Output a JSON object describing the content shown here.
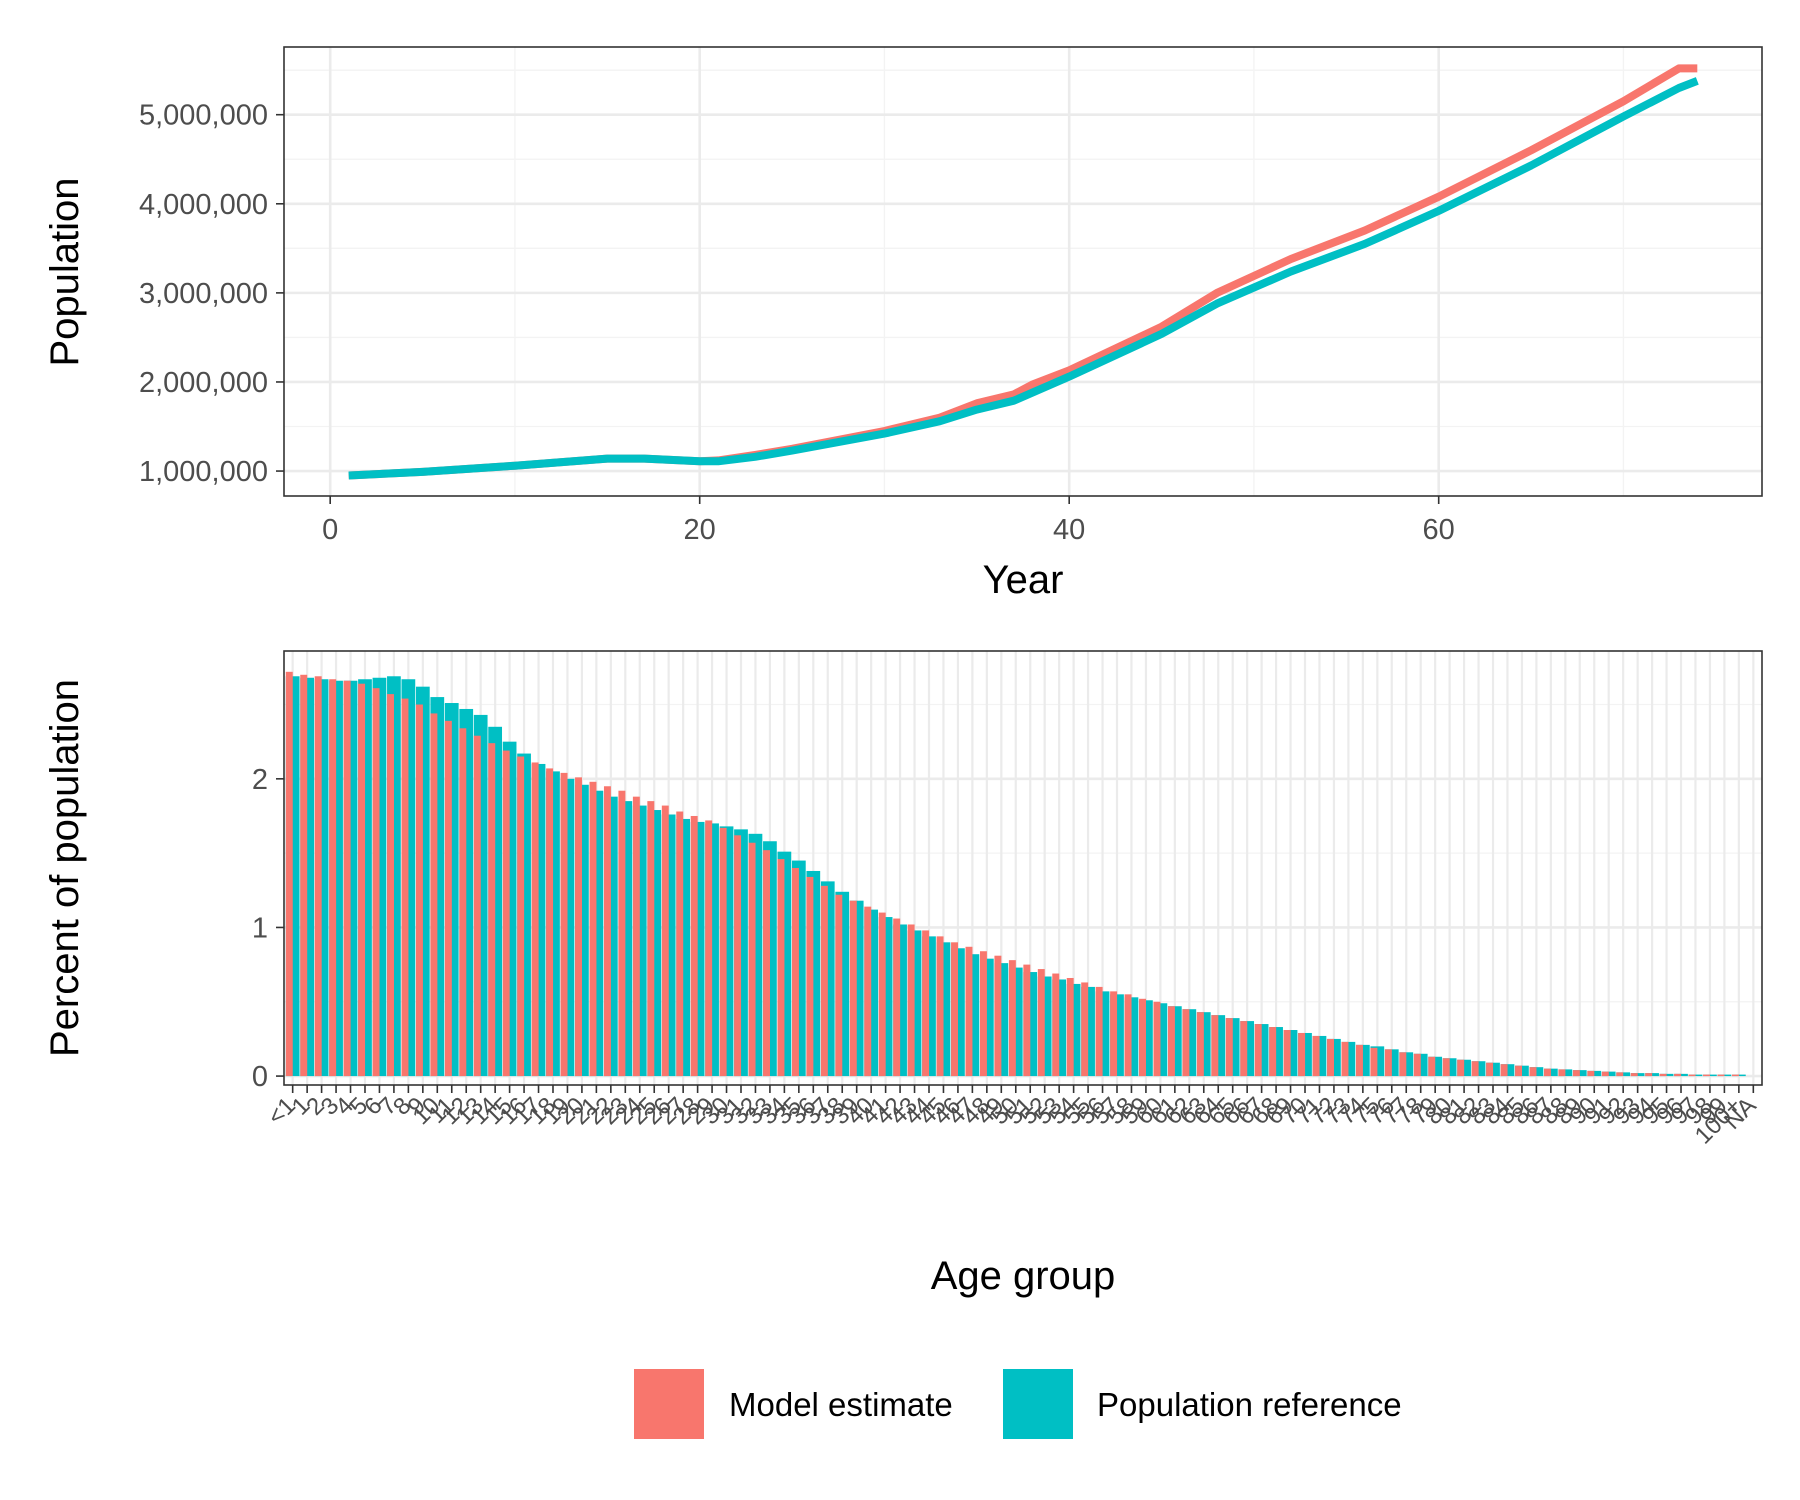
{
  "colors": {
    "model": "#F8766D",
    "reference": "#00BFC4",
    "grid_major": "#EBEBEB",
    "grid_minor": "#F3F3F3",
    "panel_border": "#333333"
  },
  "legend": {
    "items": [
      {
        "label": "Model estimate",
        "color": "#F8766D"
      },
      {
        "label": "Population reference",
        "color": "#00BFC4"
      }
    ],
    "position": "bottom"
  },
  "chart_data": [
    {
      "type": "line",
      "xlabel": "Year",
      "ylabel": "Population",
      "xlim": [
        -2.5,
        77.5
      ],
      "ylim": [
        720000,
        5760000
      ],
      "x_ticks": [
        0,
        20,
        40,
        60
      ],
      "y_ticks": [
        1000000,
        2000000,
        3000000,
        4000000,
        5000000
      ],
      "y_tick_labels": [
        "1,000,000",
        "2,000,000",
        "3,000,000",
        "4,000,000",
        "5,000,000"
      ],
      "grid": true,
      "series": [
        {
          "name": "Model estimate",
          "color": "#F8766D",
          "x": [
            1,
            5,
            10,
            15,
            17,
            20,
            21,
            23,
            25,
            30,
            33,
            35,
            37,
            38,
            40,
            45,
            48,
            52,
            56,
            60,
            65,
            70,
            73,
            74
          ],
          "y": [
            950000,
            990000,
            1060000,
            1140000,
            1140000,
            1110000,
            1120000,
            1180000,
            1250000,
            1450000,
            1600000,
            1760000,
            1860000,
            1970000,
            2130000,
            2620000,
            3000000,
            3380000,
            3700000,
            4080000,
            4600000,
            5150000,
            5520000,
            5520000
          ]
        },
        {
          "name": "Population reference",
          "color": "#00BFC4",
          "x": [
            1,
            5,
            10,
            15,
            17,
            20,
            21,
            23,
            25,
            30,
            33,
            35,
            37,
            38,
            40,
            45,
            48,
            52,
            56,
            60,
            65,
            70,
            73,
            74
          ],
          "y": [
            950000,
            990000,
            1060000,
            1140000,
            1140000,
            1110000,
            1110000,
            1160000,
            1230000,
            1420000,
            1560000,
            1690000,
            1790000,
            1880000,
            2060000,
            2540000,
            2880000,
            3240000,
            3550000,
            3920000,
            4430000,
            4980000,
            5300000,
            5380000
          ]
        }
      ]
    },
    {
      "type": "bar",
      "xlabel": "Age group",
      "ylabel": "Percent of population",
      "ylim": [
        -0.06,
        2.86
      ],
      "y_ticks": [
        0,
        1,
        2
      ],
      "y_tick_labels": [
        "0",
        "1",
        "2"
      ],
      "grid": true,
      "categories": [
        "<1",
        "1",
        "2",
        "3",
        "4",
        "5",
        "6",
        "7",
        "8",
        "9",
        "10",
        "11",
        "12",
        "13",
        "14",
        "15",
        "16",
        "17",
        "18",
        "19",
        "20",
        "21",
        "22",
        "23",
        "24",
        "25",
        "26",
        "27",
        "28",
        "29",
        "30",
        "31",
        "32",
        "33",
        "34",
        "35",
        "36",
        "37",
        "38",
        "39",
        "40",
        "41",
        "42",
        "43",
        "44",
        "45",
        "46",
        "47",
        "48",
        "49",
        "50",
        "51",
        "52",
        "53",
        "54",
        "55",
        "56",
        "57",
        "58",
        "59",
        "60",
        "61",
        "62",
        "63",
        "64",
        "65",
        "66",
        "67",
        "68",
        "69",
        "70",
        "71",
        "72",
        "73",
        "74",
        "75",
        "76",
        "77",
        "78",
        "79",
        "80",
        "81",
        "82",
        "83",
        "84",
        "85",
        "86",
        "87",
        "88",
        "89",
        "90",
        "91",
        "92",
        "93",
        "94",
        "95",
        "96",
        "97",
        "98",
        "99",
        "100+",
        "NA"
      ],
      "series": [
        {
          "name": "Model estimate",
          "color": "#F8766D",
          "values": [
            2.72,
            2.7,
            2.69,
            2.67,
            2.66,
            2.64,
            2.61,
            2.57,
            2.54,
            2.5,
            2.44,
            2.39,
            2.34,
            2.29,
            2.24,
            2.19,
            2.15,
            2.11,
            2.07,
            2.04,
            2.01,
            1.98,
            1.95,
            1.92,
            1.88,
            1.85,
            1.82,
            1.78,
            1.75,
            1.72,
            1.67,
            1.62,
            1.57,
            1.52,
            1.46,
            1.4,
            1.34,
            1.28,
            1.22,
            1.18,
            1.14,
            1.1,
            1.06,
            1.02,
            0.98,
            0.94,
            0.9,
            0.87,
            0.84,
            0.81,
            0.78,
            0.75,
            0.72,
            0.69,
            0.66,
            0.63,
            0.6,
            0.57,
            0.55,
            0.52,
            0.5,
            0.47,
            0.45,
            0.43,
            0.41,
            0.39,
            0.37,
            0.35,
            0.33,
            0.31,
            0.29,
            0.27,
            0.25,
            0.23,
            0.21,
            0.19,
            0.18,
            0.16,
            0.15,
            0.13,
            0.12,
            0.11,
            0.1,
            0.09,
            0.08,
            0.07,
            0.06,
            0.05,
            0.045,
            0.04,
            0.035,
            0.03,
            0.025,
            0.02,
            0.02,
            0.015,
            0.015,
            0.01,
            0.01,
            0.01,
            0.01,
            0.0
          ]
        },
        {
          "name": "Population reference",
          "color": "#00BFC4",
          "values": [
            2.69,
            2.68,
            2.67,
            2.66,
            2.66,
            2.67,
            2.68,
            2.69,
            2.67,
            2.62,
            2.55,
            2.51,
            2.47,
            2.43,
            2.35,
            2.25,
            2.17,
            2.1,
            2.05,
            2.0,
            1.96,
            1.92,
            1.88,
            1.85,
            1.82,
            1.79,
            1.76,
            1.73,
            1.71,
            1.7,
            1.68,
            1.66,
            1.63,
            1.58,
            1.51,
            1.45,
            1.38,
            1.31,
            1.24,
            1.18,
            1.12,
            1.07,
            1.02,
            0.98,
            0.94,
            0.9,
            0.86,
            0.82,
            0.79,
            0.76,
            0.73,
            0.7,
            0.67,
            0.65,
            0.62,
            0.6,
            0.57,
            0.55,
            0.53,
            0.51,
            0.49,
            0.47,
            0.45,
            0.43,
            0.41,
            0.39,
            0.37,
            0.35,
            0.33,
            0.31,
            0.29,
            0.27,
            0.25,
            0.23,
            0.21,
            0.2,
            0.18,
            0.16,
            0.15,
            0.13,
            0.12,
            0.11,
            0.1,
            0.09,
            0.08,
            0.07,
            0.06,
            0.05,
            0.045,
            0.04,
            0.035,
            0.03,
            0.025,
            0.02,
            0.02,
            0.015,
            0.015,
            0.01,
            0.01,
            0.01,
            0.01,
            0.0
          ]
        }
      ]
    }
  ]
}
